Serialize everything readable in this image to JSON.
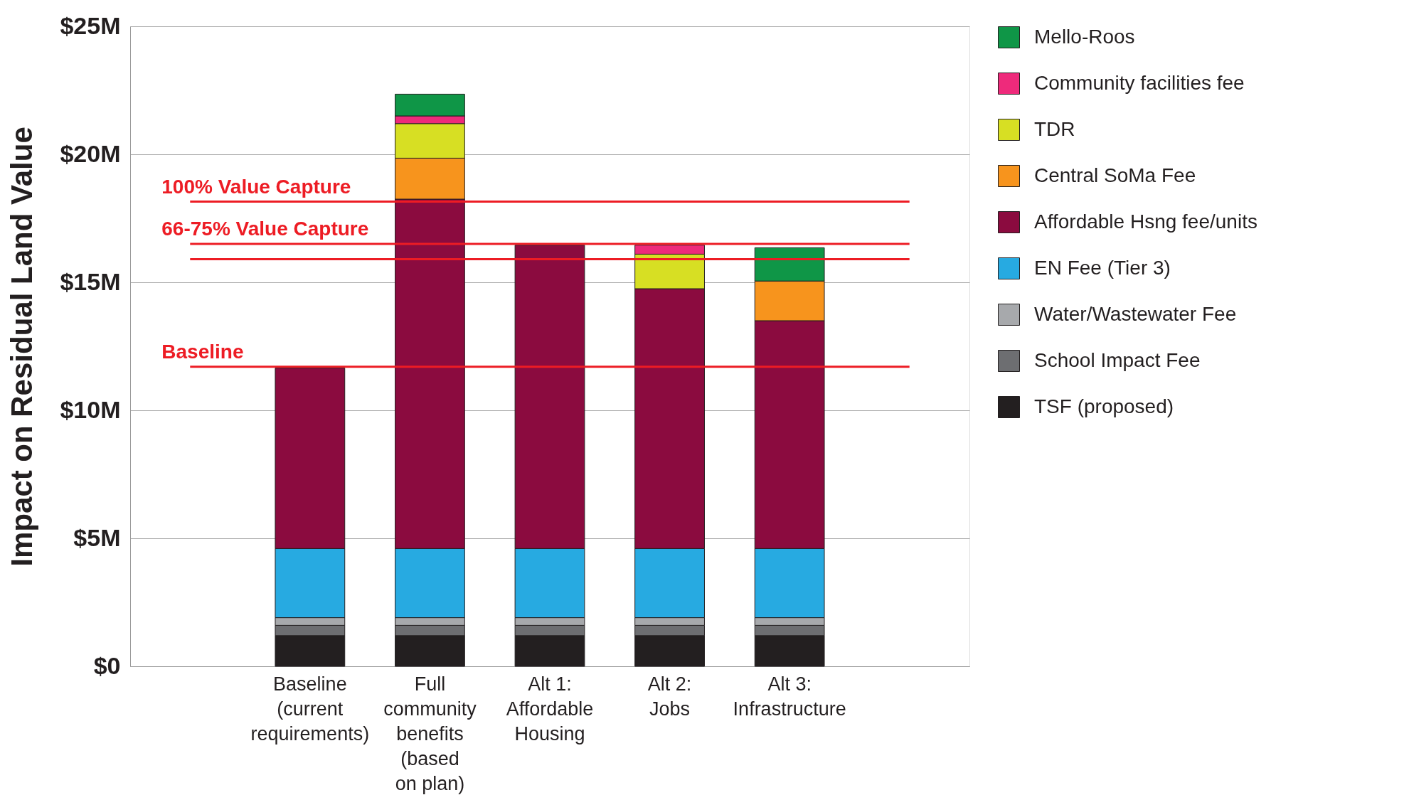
{
  "chart_data": {
    "type": "bar",
    "stacked": true,
    "ylabel": "Impact on Residual Land Value",
    "categories": [
      null,
      "Baseline\n(current\nrequirements)",
      "Full\ncommunity\nbenefits\n(based\non plan)",
      "Alt 1:\nAffordable\nHousing",
      "Alt 2:\nJobs",
      "Alt 3:\nInfrastructure",
      null
    ],
    "series": [
      {
        "name": "TSF (proposed)",
        "color": "#231f20",
        "values": [
          null,
          1.2,
          1.2,
          1.2,
          1.2,
          1.2,
          null
        ]
      },
      {
        "name": "School Impact Fee",
        "color": "#6d6e71",
        "values": [
          null,
          0.4,
          0.4,
          0.4,
          0.4,
          0.4,
          null
        ]
      },
      {
        "name": "Water/Wastewater Fee",
        "color": "#a7a9ac",
        "values": [
          null,
          0.3,
          0.3,
          0.3,
          0.3,
          0.3,
          null
        ]
      },
      {
        "name": "EN Fee (Tier 3)",
        "color": "#27aae1",
        "values": [
          null,
          2.7,
          2.7,
          2.7,
          2.7,
          2.7,
          null
        ]
      },
      {
        "name": "Affordable Hsng fee/units",
        "color": "#8b0b3f",
        "values": [
          null,
          7.05,
          13.65,
          11.85,
          10.15,
          8.9,
          null
        ]
      },
      {
        "name": "Central SoMa Fee",
        "color": "#f7941d",
        "values": [
          null,
          null,
          1.6,
          null,
          null,
          1.55,
          null
        ]
      },
      {
        "name": "TDR",
        "color": "#d7df23",
        "values": [
          null,
          null,
          1.35,
          null,
          1.35,
          null,
          null
        ]
      },
      {
        "name": "Community facilities fee",
        "color": "#ee2a7b",
        "values": [
          null,
          null,
          0.3,
          null,
          0.35,
          null,
          null
        ]
      },
      {
        "name": "Mello-Roos",
        "color": "#0f9647",
        "values": [
          null,
          null,
          0.85,
          null,
          null,
          1.3,
          null
        ]
      }
    ],
    "ylim": [
      0,
      25
    ],
    "yticks": [
      {
        "value": 0,
        "label": "$0"
      },
      {
        "value": 5,
        "label": "$5M"
      },
      {
        "value": 10,
        "label": "$10M"
      },
      {
        "value": 15,
        "label": "$15M"
      },
      {
        "value": 20,
        "label": "$20M"
      },
      {
        "value": 25,
        "label": "$25M"
      }
    ],
    "ref_lines": [
      {
        "axis": "y",
        "value": 18.15,
        "label": "100% Value Capture",
        "color": "#ed1c24"
      },
      {
        "axis": "y",
        "value": 16.5,
        "label": "66-75% Value Capture",
        "color": "#ed1c24"
      },
      {
        "axis": "y",
        "value": 15.9,
        "label": null,
        "color": "#ed1c24"
      },
      {
        "axis": "y",
        "value": 11.7,
        "label": "Baseline",
        "color": "#ed1c24"
      }
    ],
    "grid": "y",
    "legend": "right"
  }
}
